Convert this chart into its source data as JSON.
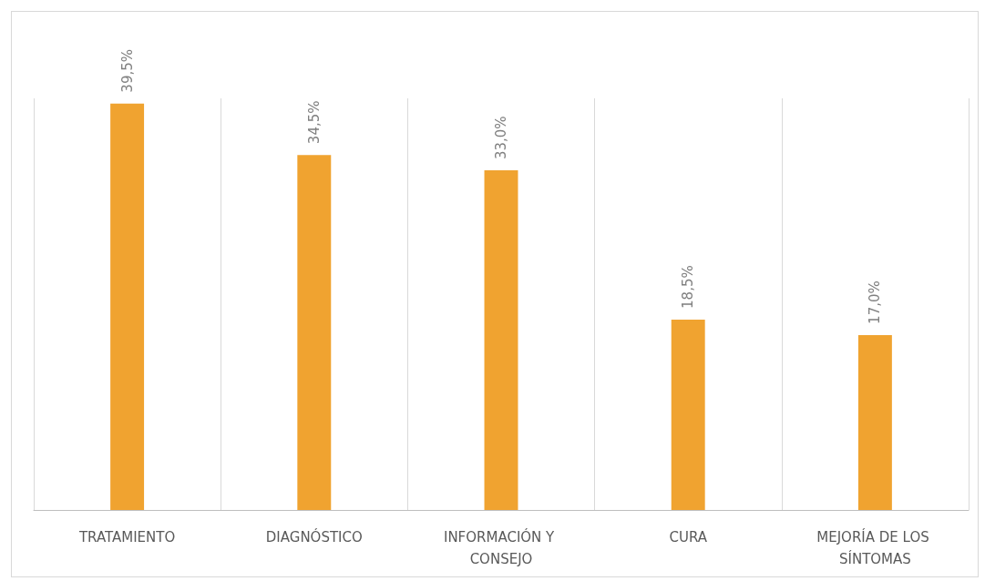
{
  "chart_data": {
    "type": "bar",
    "categories": [
      "TRATAMIENTO",
      "DIAGNÓSTICO",
      "INFORMACIÓN Y CONSEJO",
      "CURA",
      "MEJORÍA DE LOS SÍNTOMAS"
    ],
    "values": [
      39.5,
      34.5,
      33.0,
      18.5,
      17.0
    ],
    "value_labels": [
      "39,5%",
      "34,5%",
      "33,0%",
      "18,5%",
      "17,0%"
    ],
    "color": "#f0a330",
    "grid": "x"
  }
}
